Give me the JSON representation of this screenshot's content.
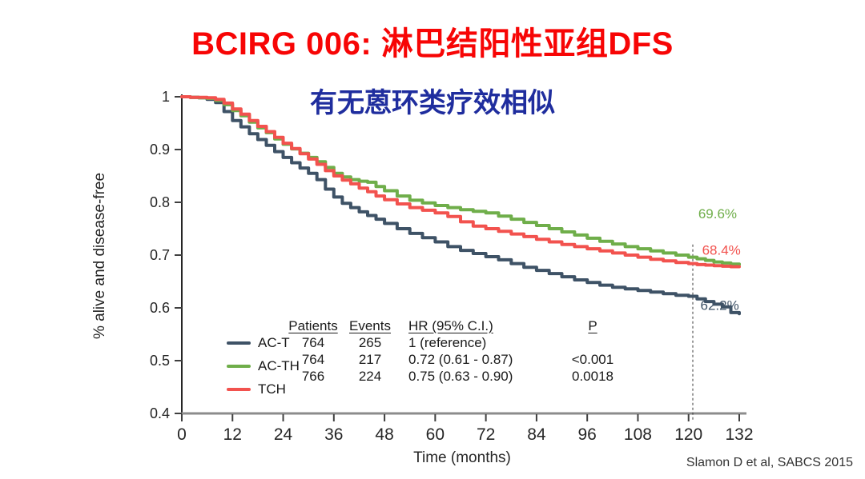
{
  "title": "BCIRG 006: 淋巴结阳性亚组DFS",
  "subtitle": "有无蒽环类疗效相似",
  "citation": "Slamon D et al, SABCS 2015",
  "colors": {
    "title": "#f70505",
    "subtitle": "#1f2d9e",
    "citation": "#333333",
    "axis_line": "#8c8c8c",
    "tick_text": "#262626"
  },
  "stats_table": {
    "headers": [
      "Patients",
      "Events",
      "HR (95% C.I.)",
      "P"
    ],
    "rows": [
      {
        "group": "AC-T",
        "patients": "764",
        "events": "265",
        "hr": "1 (reference)",
        "p": ""
      },
      {
        "group": "AC-TH",
        "patients": "764",
        "events": "217",
        "hr": "0.72 (0.61 - 0.87)",
        "p": "<0.001"
      },
      {
        "group": "TCH",
        "patients": "766",
        "events": "224",
        "hr": "0.75 (0.63 - 0.90)",
        "p": "0.0018"
      }
    ]
  },
  "chart_data": {
    "type": "line",
    "subtype": "kaplan-meier-step",
    "xlabel": "Time (months)",
    "ylabel": "% alive and disease-free",
    "xlim": [
      0,
      132
    ],
    "ylim": [
      0.4,
      1.0
    ],
    "xticks": [
      0,
      12,
      24,
      36,
      48,
      60,
      72,
      84,
      96,
      108,
      120,
      132
    ],
    "yticks": [
      0.4,
      0.5,
      0.6,
      0.7,
      0.8,
      0.9,
      1
    ],
    "grid": false,
    "legend_position": "inside-lower-left",
    "reference_line": {
      "x": 121,
      "y_top": 0.72,
      "style": "dashed"
    },
    "x": [
      0,
      2,
      4,
      6,
      8,
      10,
      12,
      14,
      16,
      18,
      20,
      22,
      24,
      26,
      28,
      30,
      32,
      34,
      36,
      38,
      40,
      42,
      44,
      46,
      48,
      51,
      54,
      57,
      60,
      63,
      66,
      69,
      72,
      75,
      78,
      81,
      84,
      87,
      90,
      93,
      96,
      99,
      102,
      105,
      108,
      111,
      114,
      117,
      120,
      122,
      124,
      126,
      128,
      130,
      132
    ],
    "series": [
      {
        "name": "AC-T",
        "color": "#3e5266",
        "end_label": "62.2%",
        "label_x": 122.8,
        "label_y": 0.596,
        "values": [
          1.0,
          0.999,
          0.998,
          0.995,
          0.989,
          0.972,
          0.955,
          0.943,
          0.93,
          0.919,
          0.908,
          0.896,
          0.885,
          0.875,
          0.865,
          0.855,
          0.843,
          0.825,
          0.81,
          0.798,
          0.79,
          0.782,
          0.775,
          0.768,
          0.76,
          0.75,
          0.741,
          0.733,
          0.725,
          0.716,
          0.709,
          0.703,
          0.697,
          0.691,
          0.684,
          0.677,
          0.671,
          0.665,
          0.659,
          0.653,
          0.648,
          0.643,
          0.639,
          0.636,
          0.633,
          0.63,
          0.627,
          0.624,
          0.622,
          0.617,
          0.612,
          0.607,
          0.602,
          0.591,
          0.589
        ]
      },
      {
        "name": "AC-TH",
        "color": "#6fae4a",
        "end_label": "69.6%",
        "label_x": 122.3,
        "label_y": 0.77,
        "values": [
          1.0,
          0.999,
          0.998,
          0.997,
          0.993,
          0.985,
          0.974,
          0.964,
          0.952,
          0.941,
          0.932,
          0.92,
          0.91,
          0.901,
          0.893,
          0.885,
          0.877,
          0.866,
          0.855,
          0.848,
          0.843,
          0.84,
          0.838,
          0.83,
          0.822,
          0.812,
          0.804,
          0.799,
          0.794,
          0.79,
          0.786,
          0.783,
          0.78,
          0.774,
          0.768,
          0.762,
          0.756,
          0.75,
          0.744,
          0.738,
          0.732,
          0.726,
          0.721,
          0.716,
          0.712,
          0.708,
          0.704,
          0.7,
          0.696,
          0.693,
          0.69,
          0.687,
          0.685,
          0.683,
          0.682
        ]
      },
      {
        "name": "TCH",
        "color": "#f2524e",
        "end_label": "68.4%",
        "label_x": 123.2,
        "label_y": 0.701,
        "values": [
          1.0,
          0.999,
          0.999,
          0.998,
          0.995,
          0.988,
          0.977,
          0.967,
          0.955,
          0.944,
          0.934,
          0.923,
          0.912,
          0.902,
          0.892,
          0.882,
          0.872,
          0.86,
          0.85,
          0.842,
          0.835,
          0.827,
          0.82,
          0.812,
          0.805,
          0.797,
          0.79,
          0.785,
          0.78,
          0.773,
          0.763,
          0.755,
          0.75,
          0.745,
          0.74,
          0.735,
          0.73,
          0.725,
          0.72,
          0.716,
          0.712,
          0.708,
          0.704,
          0.7,
          0.696,
          0.692,
          0.689,
          0.686,
          0.684,
          0.682,
          0.681,
          0.68,
          0.679,
          0.678,
          0.678
        ]
      }
    ]
  }
}
